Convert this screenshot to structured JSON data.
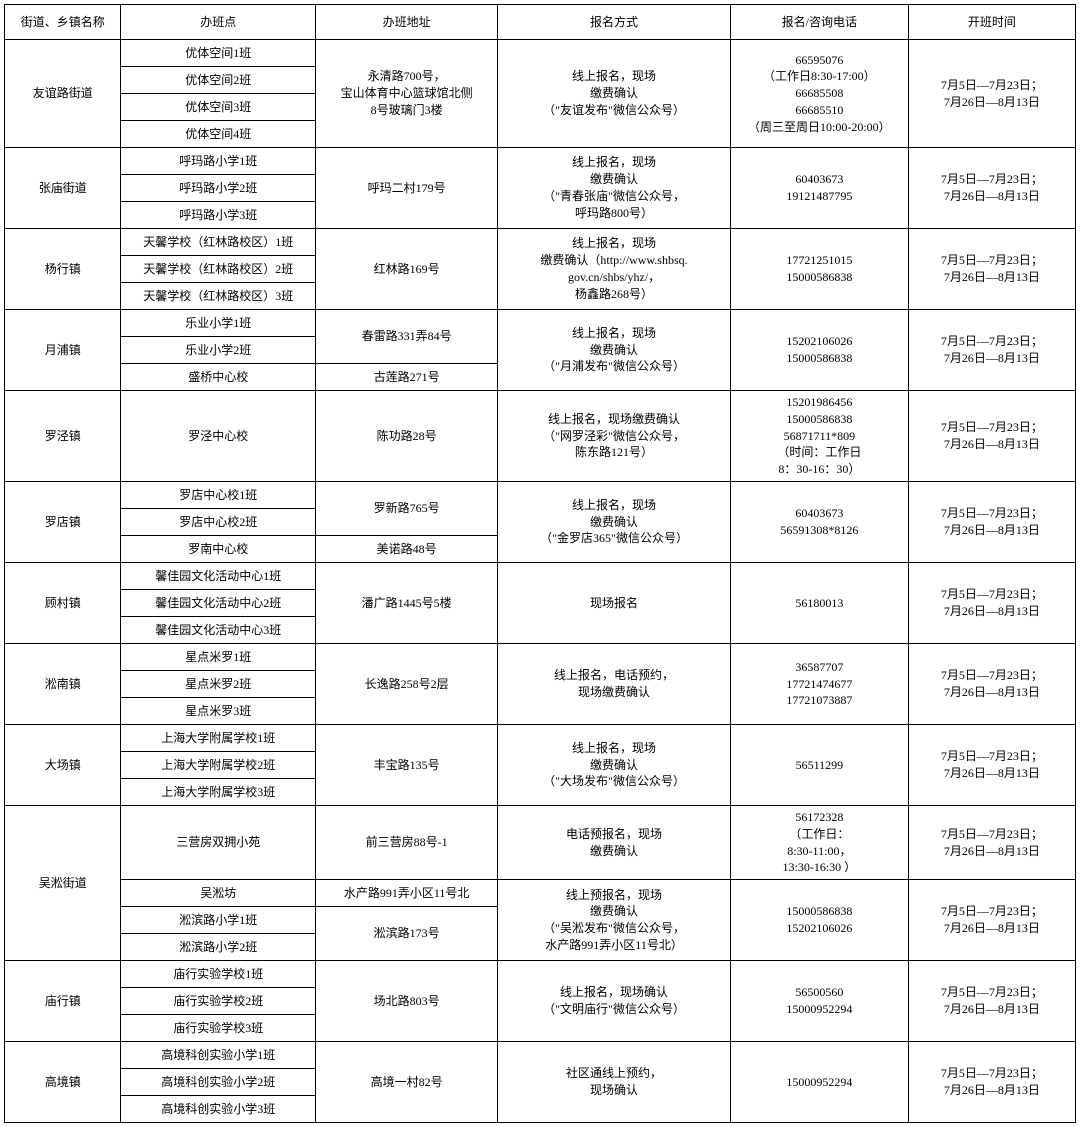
{
  "headers": [
    "街道、乡镇名称",
    "办班点",
    "办班地址",
    "报名方式",
    "报名/咨询电话",
    "开班时间"
  ],
  "groups": [
    {
      "district": "友谊路街道",
      "rows": [
        {
          "rs": 4,
          "site": "优体空间1班",
          "addr": {
            "rs": 4,
            "t": "永清路700号，\n宝山体育中心篮球馆北侧\n8号玻璃门3楼"
          },
          "method": {
            "rs": 4,
            "t": "线上报名，现场\n缴费确认\n（\"友谊发布\"微信公众号）"
          },
          "phone": {
            "rs": 4,
            "t": "66595076\n（工作日8:30-17:00）\n66685508\n66685510\n（周三至周日10:00-20:00）"
          },
          "time": {
            "rs": 4,
            "t": "7月5日—7月23日；\n7月26日—8月13日"
          }
        },
        {
          "site": "优体空间2班"
        },
        {
          "site": "优体空间3班"
        },
        {
          "site": "优体空间4班"
        }
      ]
    },
    {
      "district": "张庙街道",
      "rows": [
        {
          "rs": 3,
          "site": "呼玛路小学1班",
          "addr": {
            "rs": 3,
            "t": "呼玛二村179号"
          },
          "method": {
            "rs": 3,
            "t": "线上报名，现场\n缴费确认\n（\"青春张庙\"微信公众号，\n呼玛路800号）"
          },
          "phone": {
            "rs": 3,
            "t": "60403673\n19121487795"
          },
          "time": {
            "rs": 3,
            "t": "7月5日—7月23日；\n7月26日—8月13日"
          }
        },
        {
          "site": "呼玛路小学2班"
        },
        {
          "site": "呼玛路小学3班"
        }
      ]
    },
    {
      "district": "杨行镇",
      "rows": [
        {
          "rs": 3,
          "site": "天馨学校（红林路校区）1班",
          "addr": {
            "rs": 3,
            "t": "红林路169号"
          },
          "method": {
            "rs": 3,
            "t": "线上报名，现场\n缴费确认（http://www.shbsq.\ngov.cn/shbs/yhz/，\n杨鑫路268号）"
          },
          "phone": {
            "rs": 3,
            "t": "17721251015\n15000586838"
          },
          "time": {
            "rs": 3,
            "t": "7月5日—7月23日；\n7月26日—8月13日"
          }
        },
        {
          "site": "天馨学校（红林路校区）2班"
        },
        {
          "site": "天馨学校（红林路校区）3班"
        }
      ]
    },
    {
      "district": "月浦镇",
      "rows": [
        {
          "rs": 3,
          "site": "乐业小学1班",
          "addr": {
            "rs": 2,
            "t": "春雷路331弄84号"
          },
          "method": {
            "rs": 3,
            "t": "线上报名，现场\n缴费确认\n（\"月浦发布\"微信公众号）"
          },
          "phone": {
            "rs": 3,
            "t": "15202106026\n15000586838"
          },
          "time": {
            "rs": 3,
            "t": "7月5日—7月23日；\n7月26日—8月13日"
          }
        },
        {
          "site": "乐业小学2班"
        },
        {
          "site": "盛桥中心校",
          "addr": {
            "rs": 1,
            "t": "古莲路271号"
          }
        }
      ]
    },
    {
      "district": "罗泾镇",
      "rows": [
        {
          "rs": 1,
          "site": "罗泾中心校",
          "addr": {
            "rs": 1,
            "t": "陈功路28号"
          },
          "method": {
            "rs": 1,
            "t": "线上报名，现场缴费确认\n（\"网罗泾彩\"微信公众号，\n陈东路121号）"
          },
          "phone": {
            "rs": 1,
            "t": "15201986456\n15000586838\n56871711*809\n（时间：工作日\n8：30-16：30）"
          },
          "time": {
            "rs": 1,
            "t": "7月5日—7月23日；\n7月26日—8月13日"
          }
        }
      ]
    },
    {
      "district": "罗店镇",
      "rows": [
        {
          "rs": 3,
          "site": "罗店中心校1班",
          "addr": {
            "rs": 2,
            "t": "罗新路765号"
          },
          "method": {
            "rs": 3,
            "t": "线上报名，现场\n缴费确认\n（\"金罗店365\"微信公众号）"
          },
          "phone": {
            "rs": 3,
            "t": "60403673\n56591308*8126"
          },
          "time": {
            "rs": 3,
            "t": "7月5日—7月23日；\n7月26日—8月13日"
          }
        },
        {
          "site": "罗店中心校2班"
        },
        {
          "site": "罗南中心校",
          "addr": {
            "rs": 1,
            "t": "美诺路48号"
          }
        }
      ]
    },
    {
      "district": "顾村镇",
      "rows": [
        {
          "rs": 3,
          "site": "馨佳园文化活动中心1班",
          "addr": {
            "rs": 3,
            "t": "潘广路1445号5楼"
          },
          "method": {
            "rs": 3,
            "t": "现场报名"
          },
          "phone": {
            "rs": 3,
            "t": "56180013"
          },
          "time": {
            "rs": 3,
            "t": "7月5日—7月23日；\n7月26日—8月13日"
          }
        },
        {
          "site": "馨佳园文化活动中心2班"
        },
        {
          "site": "馨佳园文化活动中心3班"
        }
      ]
    },
    {
      "district": "淞南镇",
      "rows": [
        {
          "rs": 3,
          "site": "星点米罗1班",
          "addr": {
            "rs": 3,
            "t": "长逸路258号2层"
          },
          "method": {
            "rs": 3,
            "t": "线上报名，电话预约，\n现场缴费确认"
          },
          "phone": {
            "rs": 3,
            "t": "36587707\n17721474677\n17721073887"
          },
          "time": {
            "rs": 3,
            "t": "7月5日—7月23日；\n7月26日—8月13日"
          }
        },
        {
          "site": "星点米罗2班"
        },
        {
          "site": "星点米罗3班"
        }
      ]
    },
    {
      "district": "大场镇",
      "rows": [
        {
          "rs": 3,
          "site": "上海大学附属学校1班",
          "addr": {
            "rs": 3,
            "t": "丰宝路135号"
          },
          "method": {
            "rs": 3,
            "t": "线上报名，现场\n缴费确认\n（\"大场发布\"微信公众号）"
          },
          "phone": {
            "rs": 3,
            "t": "56511299"
          },
          "time": {
            "rs": 3,
            "t": "7月5日—7月23日；\n7月26日—8月13日"
          }
        },
        {
          "site": "上海大学附属学校2班"
        },
        {
          "site": "上海大学附属学校3班"
        }
      ]
    },
    {
      "district": "吴淞街道",
      "rows": [
        {
          "rs": 4,
          "site": "三营房双拥小苑",
          "addr": {
            "rs": 1,
            "t": "前三营房88号-1"
          },
          "method": {
            "rs": 1,
            "t": "电话预报名，现场\n缴费确认"
          },
          "phone": {
            "rs": 1,
            "t": "56172328\n（工作日：\n8:30-11:00，\n13:30-16:30 ）"
          },
          "time": {
            "rs": 1,
            "t": "7月5日—7月23日；\n7月26日—8月13日"
          }
        },
        {
          "site": "吴淞坊",
          "addr": {
            "rs": 1,
            "t": "水产路991弄小区11号北"
          },
          "method": {
            "rs": 3,
            "t": "线上预报名，现场\n缴费确认\n（\"吴淞发布\"微信公众号，\n水产路991弄小区11号北）"
          },
          "phone": {
            "rs": 3,
            "t": "15000586838\n15202106026"
          },
          "time": {
            "rs": 3,
            "t": "7月5日—7月23日；\n7月26日—8月13日"
          }
        },
        {
          "site": "淞滨路小学1班",
          "addr": {
            "rs": 2,
            "t": "淞滨路173号"
          }
        },
        {
          "site": "淞滨路小学2班"
        }
      ]
    },
    {
      "district": "庙行镇",
      "rows": [
        {
          "rs": 3,
          "site": "庙行实验学校1班",
          "addr": {
            "rs": 3,
            "t": "场北路803号"
          },
          "method": {
            "rs": 3,
            "t": "线上报名，现场确认\n（\"文明庙行\"微信公众号）"
          },
          "phone": {
            "rs": 3,
            "t": "56500560\n15000952294"
          },
          "time": {
            "rs": 3,
            "t": "7月5日—7月23日；\n7月26日—8月13日"
          }
        },
        {
          "site": "庙行实验学校2班"
        },
        {
          "site": "庙行实验学校3班"
        }
      ]
    },
    {
      "district": "高境镇",
      "rows": [
        {
          "rs": 3,
          "site": "高境科创实验小学1班",
          "addr": {
            "rs": 3,
            "t": "高境一村82号"
          },
          "method": {
            "rs": 3,
            "t": "社区通线上预约，\n现场确认"
          },
          "phone": {
            "rs": 3,
            "t": "15000952294"
          },
          "time": {
            "rs": 3,
            "t": "7月5日—7月23日；\n7月26日—8月13日"
          }
        },
        {
          "site": "高境科创实验小学2班"
        },
        {
          "site": "高境科创实验小学3班"
        }
      ]
    }
  ]
}
